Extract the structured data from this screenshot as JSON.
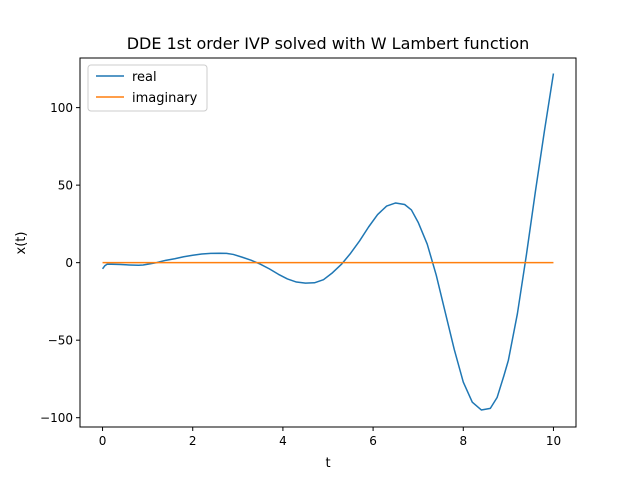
{
  "chart_data": {
    "type": "line",
    "title": "DDE 1st order IVP solved with W Lambert function",
    "xlabel": "t",
    "ylabel": "x(t)",
    "xlim": [
      -0.5,
      10.5
    ],
    "ylim": [
      -106,
      132
    ],
    "xticks": [
      0,
      2,
      4,
      6,
      8,
      10
    ],
    "yticks": [
      -100,
      -50,
      0,
      50,
      100
    ],
    "xtick_labels": [
      "0",
      "2",
      "4",
      "6",
      "8",
      "10"
    ],
    "ytick_labels": [
      "−100",
      "−50",
      "0",
      "50",
      "100"
    ],
    "grid": false,
    "legend_position": "upper-left",
    "series": [
      {
        "name": "real",
        "color": "#1f77b4",
        "x": [
          0,
          0.05,
          0.1,
          0.2,
          0.4,
          0.6,
          0.8,
          0.9,
          1.0,
          1.2,
          1.4,
          1.6,
          1.8,
          2.0,
          2.2,
          2.4,
          2.6,
          2.75,
          2.9,
          3.1,
          3.3,
          3.5,
          3.7,
          3.9,
          4.1,
          4.3,
          4.5,
          4.7,
          4.9,
          5.1,
          5.3,
          5.5,
          5.7,
          5.9,
          6.1,
          6.3,
          6.5,
          6.7,
          6.85,
          7.0,
          7.2,
          7.4,
          7.6,
          7.8,
          8.0,
          8.2,
          8.4,
          8.6,
          8.75,
          8.9,
          9.0,
          9.2,
          9.4,
          9.6,
          9.8,
          10.0
        ],
        "y": [
          -4,
          -2,
          -1,
          -1,
          -1.2,
          -1.5,
          -1.7,
          -1.5,
          -1,
          0,
          1.5,
          2.5,
          3.8,
          4.8,
          5.6,
          6.0,
          6.1,
          6.0,
          5.3,
          3.5,
          1.5,
          -1,
          -4,
          -7.5,
          -10.5,
          -12.5,
          -13.2,
          -13,
          -11,
          -6.5,
          -1,
          6,
          14,
          23,
          31,
          36.5,
          38.5,
          37.5,
          34,
          26,
          12,
          -8,
          -32,
          -56,
          -77,
          -90,
          -95,
          -94,
          -87,
          -73,
          -63,
          -33,
          5,
          46,
          85,
          122
        ]
      },
      {
        "name": "imaginary",
        "color": "#ff7f0e",
        "x": [
          0,
          10
        ],
        "y": [
          0,
          0
        ]
      }
    ]
  }
}
